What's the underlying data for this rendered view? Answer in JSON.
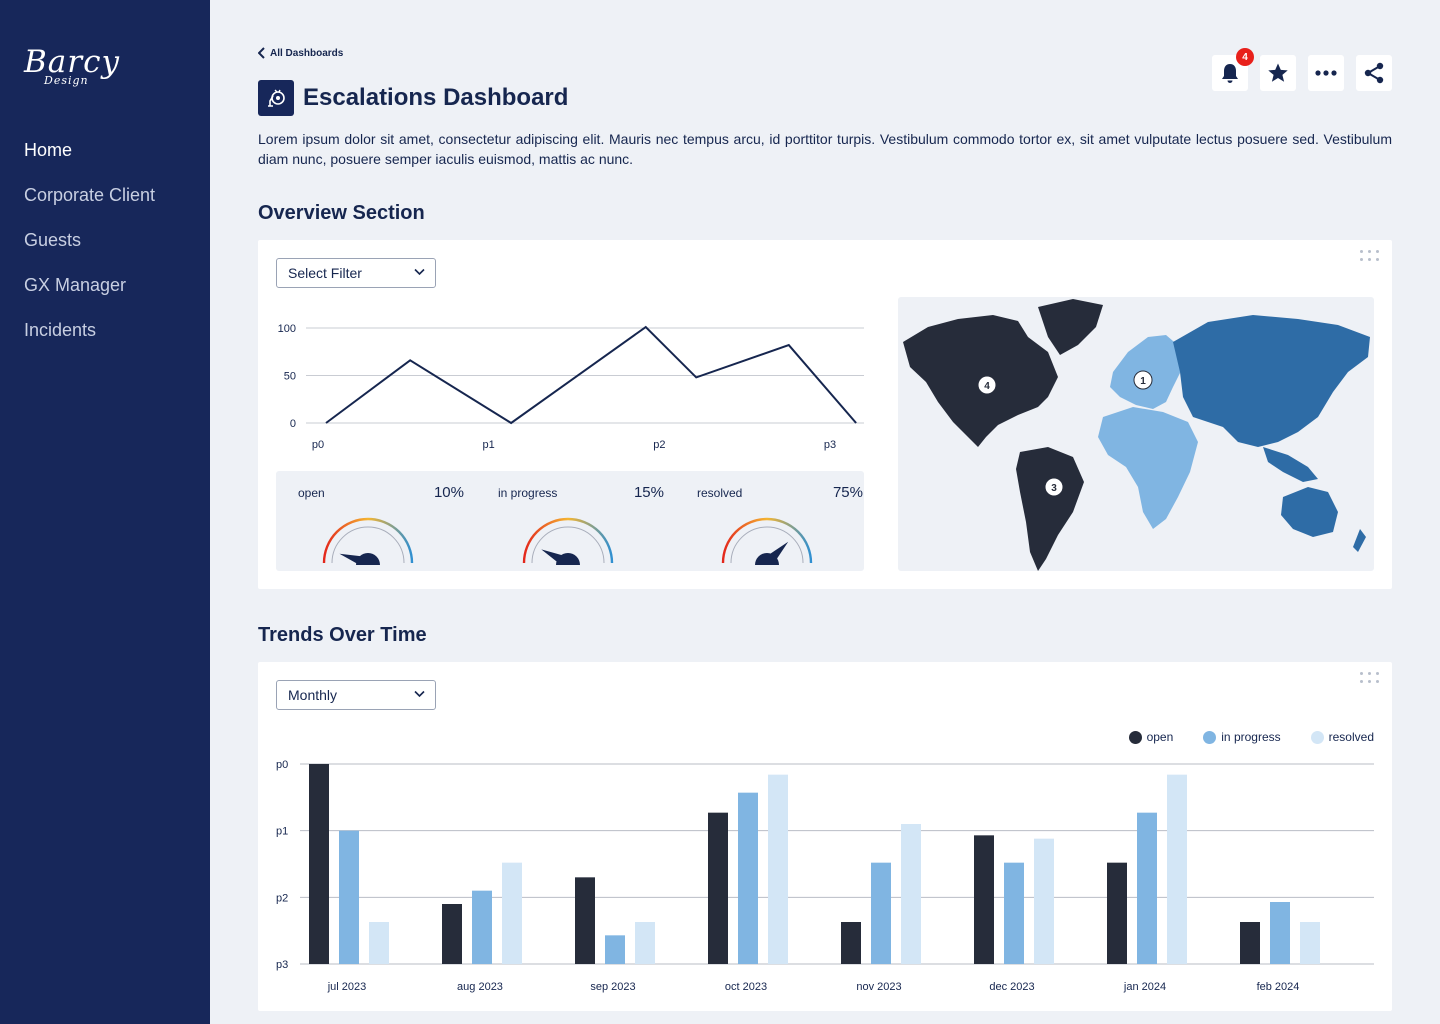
{
  "brand": {
    "name": "Barcy",
    "sub": "Design"
  },
  "nav": {
    "items": [
      {
        "label": "Home",
        "active": true
      },
      {
        "label": "Corporate Client"
      },
      {
        "label": "Guests"
      },
      {
        "label": "GX Manager"
      },
      {
        "label": "Incidents"
      }
    ]
  },
  "breadcrumb": "All Dashboards",
  "page": {
    "title": "Escalations Dashboard",
    "description": "Lorem ipsum dolor sit amet, consectetur adipiscing elit. Mauris nec tempus arcu, id porttitor turpis. Vestibulum commodo tortor ex, sit amet vulputate lectus posuere sed. Vestibulum diam nunc, posuere semper iaculis euismod, mattis ac nunc."
  },
  "actions": {
    "notification_count": "4",
    "icons": [
      "bell-icon",
      "star-icon",
      "more-icon",
      "share-icon"
    ]
  },
  "overview": {
    "title": "Overview Section",
    "filter": "Select Filter",
    "gauges": [
      {
        "label": "open",
        "value": "10%",
        "level": 0.1
      },
      {
        "label": "in progress",
        "value": "15%",
        "level": 0.15
      },
      {
        "label": "resolved",
        "value": "75%",
        "level": 0.75
      }
    ],
    "map_markers": [
      "4",
      "1",
      "3"
    ]
  },
  "trends": {
    "title": "Trends Over Time",
    "filter": "Monthly"
  },
  "chart_data": [
    {
      "type": "line",
      "x": [
        "p0",
        "p1",
        "p2",
        "p3"
      ],
      "y_ticks": [
        0,
        50,
        100
      ],
      "ylim": [
        0,
        100
      ],
      "series": [
        {
          "points": [
            [
              0,
              0
            ],
            [
              0.5,
              66
            ],
            [
              1.1,
              0
            ],
            [
              1.9,
              101
            ],
            [
              2.2,
              48
            ],
            [
              2.75,
              82
            ],
            [
              3.15,
              0
            ]
          ]
        }
      ],
      "color": "#16264f"
    },
    {
      "type": "bar",
      "categories": [
        "jul 2023",
        "aug 2023",
        "sep 2023",
        "oct 2023",
        "nov 2023",
        "dec 2023",
        "jan 2024",
        "feb 2024"
      ],
      "y_ticks": [
        "p0",
        "p1",
        "p2",
        "p3"
      ],
      "ylim": [
        0,
        3
      ],
      "legend_position": "top-right",
      "series": [
        {
          "name": "open",
          "color": "#262c3a",
          "values": [
            3.0,
            0.9,
            1.3,
            2.27,
            0.63,
            1.93,
            1.52,
            0.63
          ]
        },
        {
          "name": "in progress",
          "color": "#80b5e2",
          "values": [
            2.0,
            1.1,
            0.43,
            2.57,
            1.52,
            1.52,
            2.27,
            0.93
          ]
        },
        {
          "name": "resolved",
          "color": "#d3e6f6",
          "values": [
            0.63,
            1.52,
            0.63,
            2.84,
            2.1,
            1.88,
            2.84,
            0.63
          ]
        }
      ]
    }
  ]
}
